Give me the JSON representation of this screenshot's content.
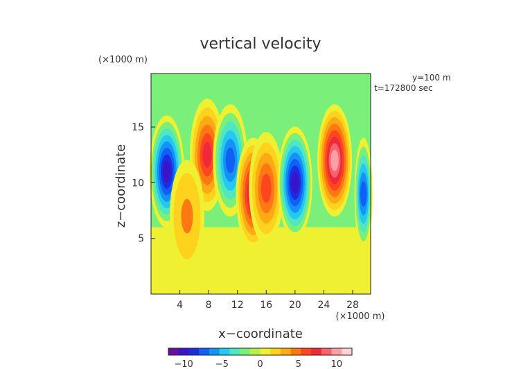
{
  "chart_data": {
    "type": "heatmap",
    "title": "vertical velocity",
    "xlabel": "x−coordinate",
    "ylabel": "z−coordinate",
    "x_unit": "(×1000 m)",
    "y_unit": "(×1000 m)",
    "annotations": [
      "y=100 m",
      "t=172800 sec"
    ],
    "xlim": [
      0,
      30.5
    ],
    "ylim": [
      0,
      19.8
    ],
    "x_ticks": [
      4,
      8,
      12,
      16,
      20,
      24,
      28
    ],
    "y_ticks": [
      5,
      10,
      15
    ],
    "colorbar": {
      "range": [
        -12,
        12
      ],
      "ticks": [
        -10,
        -5,
        0,
        5,
        10
      ],
      "tick_labels": [
        "−10",
        "−5",
        "0",
        "5",
        "10"
      ],
      "colors": [
        "#6a0e9c",
        "#3a14c8",
        "#1a2ee0",
        "#1060f5",
        "#1592f5",
        "#25c8f0",
        "#4fe6c0",
        "#7af07a",
        "#b8f04a",
        "#f0f032",
        "#ffd21e",
        "#ffaa14",
        "#ff7814",
        "#ff461e",
        "#f0283c",
        "#f5646e",
        "#ff9ea6",
        "#ffd2d6"
      ]
    },
    "features": [
      {
        "x": 2.2,
        "z": 11.0,
        "w": -10
      },
      {
        "x": 7.8,
        "z": 12.5,
        "w": 7
      },
      {
        "x": 11.0,
        "z": 12.0,
        "w": -7
      },
      {
        "x": 14.2,
        "z": 9.0,
        "w": 9
      },
      {
        "x": 16.0,
        "z": 9.5,
        "w": 6
      },
      {
        "x": 20.0,
        "z": 10.0,
        "w": -10
      },
      {
        "x": 25.5,
        "z": 12.0,
        "w": 10
      },
      {
        "x": 5.0,
        "z": 7.0,
        "w": 4
      },
      {
        "x": 29.5,
        "z": 9.0,
        "w": -7
      }
    ]
  }
}
